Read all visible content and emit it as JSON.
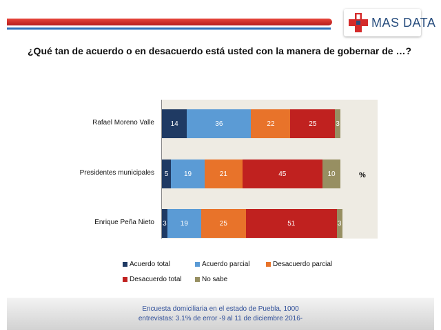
{
  "header": {
    "logo_text": "MAS DATA",
    "question": "¿Qué tan de acuerdo o en desacuerdo está usted con la manera de gobernar de …?",
    "unit": "%"
  },
  "chart_data": {
    "type": "bar",
    "orientation": "horizontal",
    "stacked": true,
    "categories": [
      "Rafael Moreno Valle",
      "Presidentes municipales",
      "Enrique Peña Nieto"
    ],
    "series": [
      {
        "name": "Acuerdo total",
        "color": "#1f3a63",
        "values": [
          14,
          5,
          3
        ]
      },
      {
        "name": "Acuerdo parcial",
        "color": "#5b9bd5",
        "values": [
          36,
          19,
          19
        ]
      },
      {
        "name": "Desacuerdo parcial",
        "color": "#e8732a",
        "values": [
          22,
          21,
          25
        ]
      },
      {
        "name": "Desacuerdo total",
        "color": "#c0211f",
        "values": [
          25,
          45,
          51
        ]
      },
      {
        "name": "No sabe",
        "color": "#978f62",
        "values": [
          3,
          10,
          3
        ]
      }
    ],
    "xlim": [
      0,
      100
    ],
    "legend_position": "bottom"
  },
  "footer": {
    "line1": "Encuesta domiciliaria en el estado de Puebla, 1000",
    "line2": "entrevistas: 3.1% de error -9 al 11 de diciembre 2016-"
  }
}
